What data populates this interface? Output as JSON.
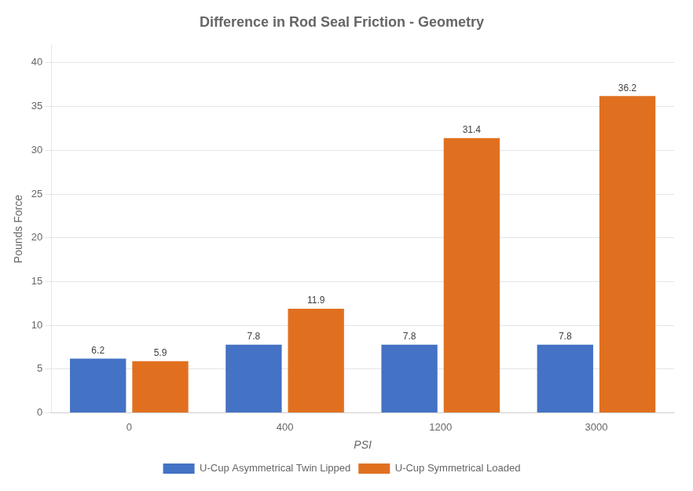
{
  "chart_data": {
    "type": "bar",
    "title": "Difference in Rod Seal Friction - Geometry",
    "x_label": "PSI",
    "y_label": "Pounds Force",
    "categories": [
      "0",
      "400",
      "1200",
      "3000"
    ],
    "series": [
      {
        "name": "U-Cup Asymmetrical Twin Lipped",
        "color": "#4472C4",
        "values": [
          6.2,
          7.8,
          7.8,
          7.8
        ]
      },
      {
        "name": "U-Cup Symmetrical Loaded",
        "color": "#E07020",
        "values": [
          5.9,
          11.9,
          31.4,
          36.2
        ]
      }
    ],
    "ylim": [
      0,
      42
    ],
    "yticks": [
      0,
      5,
      10,
      15,
      20,
      25,
      30,
      35,
      40
    ],
    "grid": true,
    "legend": "bottom",
    "data_labels": true
  }
}
